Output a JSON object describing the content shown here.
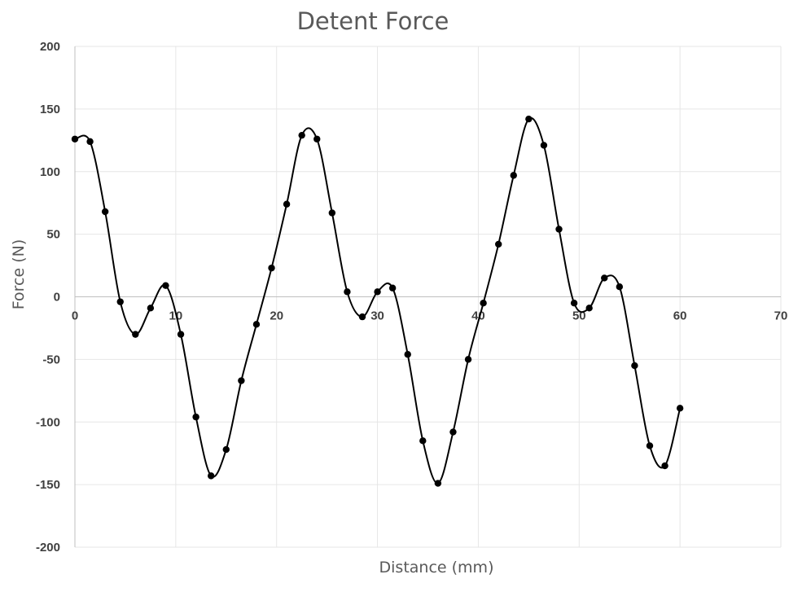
{
  "chart_data": {
    "type": "scatter",
    "title": "Detent Force",
    "xlabel": "Distance (mm)",
    "ylabel": "Force (N)",
    "xlim": [
      0,
      70
    ],
    "ylim": [
      -200,
      200
    ],
    "xticks": [
      "0",
      "10",
      "20",
      "30",
      "40",
      "50",
      "60",
      "70"
    ],
    "yticks": [
      "200",
      "150",
      "100",
      "50",
      "0",
      "-50",
      "-100",
      "-150",
      "-200"
    ],
    "grid": true,
    "legend": "none",
    "smooth_line": true,
    "series": [
      {
        "color": "#000000",
        "x": [
          0,
          1.5,
          3,
          4.5,
          6,
          7.5,
          9,
          10.5,
          12,
          13.5,
          15,
          16.5,
          18,
          19.5,
          21,
          22.5,
          24,
          25.5,
          27,
          28.5,
          30,
          31.5,
          33,
          34.5,
          36,
          37.5,
          39,
          40.5,
          42,
          43.5,
          45,
          46.5,
          48,
          49.5,
          51,
          52.5,
          54,
          55.5,
          57,
          58.5,
          60
        ],
        "y": [
          126,
          124,
          68,
          -4,
          -30,
          -9,
          9,
          -30,
          -96,
          -143,
          -122,
          -67,
          -22,
          23,
          74,
          129,
          126,
          67,
          4,
          -16,
          4,
          7,
          -46,
          -115,
          -149,
          -108,
          -50,
          -5,
          42,
          97,
          142,
          121,
          54,
          -5,
          -9,
          15,
          8,
          -55,
          -119,
          -135,
          -89
        ]
      }
    ]
  }
}
